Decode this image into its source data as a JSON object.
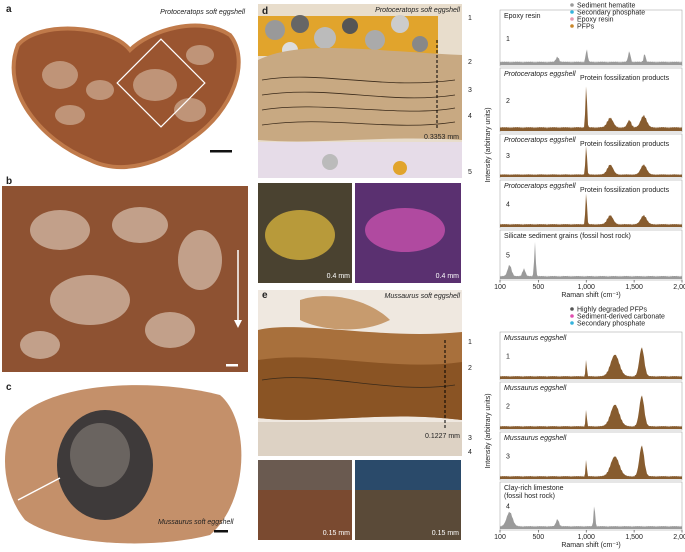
{
  "panel_a": {
    "label": "a",
    "caption": "Protoceratops soft eggshell"
  },
  "panel_b": {
    "label": "b"
  },
  "panel_c": {
    "label": "c",
    "caption": "Mussaurus soft eggshell"
  },
  "panel_d": {
    "label": "d",
    "title": "Protoceratops soft eggshell",
    "layers": [
      "1",
      "2",
      "3",
      "4",
      "5"
    ],
    "thickness": "0.3353 mm",
    "scale_bars": [
      "0.4 mm",
      "0.4 mm"
    ]
  },
  "panel_e": {
    "label": "e",
    "title": "Mussaurus soft eggshell",
    "layers": [
      "1",
      "2",
      "3",
      "4"
    ],
    "thickness": "0.1227 mm",
    "scale_bars": [
      "0.15 mm",
      "0.15 mm"
    ]
  },
  "spectra_top": {
    "legend": [
      {
        "name": "Sediment hematite",
        "color": "#9a9a9a"
      },
      {
        "name": "Secondary phosphate",
        "color": "#35b3dc"
      },
      {
        "name": "Epoxy resin",
        "color": "#e79ab0"
      },
      {
        "name": "PFPs",
        "color": "#c8862a"
      }
    ],
    "traces": [
      {
        "number": "1",
        "label": "Epoxy resin",
        "color": "#8f8f8f"
      },
      {
        "number": "2",
        "label": "Protoceratops eggshell",
        "note": "Protein fossilization products",
        "color": "#7a4a18"
      },
      {
        "number": "3",
        "label": "Protoceratops eggshell",
        "note": "Protein fossilization products",
        "color": "#7a4a18"
      },
      {
        "number": "4",
        "label": "Protoceratops eggshell",
        "note": "Protein fossilization products",
        "color": "#7a4a18"
      },
      {
        "number": "5",
        "label": "Silicate sediment grains (fossil host rock)",
        "color": "#8f8f8f"
      }
    ],
    "y_label": "Intensity (arbitrary units)",
    "x_label": "Raman shift (cm⁻¹)",
    "xlim": [
      100,
      2000
    ],
    "xticks": [
      100,
      500,
      {
        "value": 1000,
        "label": "1,000"
      },
      {
        "value": 1500,
        "label": "1,500"
      },
      {
        "value": 2000,
        "label": "2,000"
      }
    ]
  },
  "spectra_bottom": {
    "legend": [
      {
        "name": "Highly degraded PFPs",
        "color": "#555555"
      },
      {
        "name": "Sediment-derived carbonate",
        "color": "#e04fb0"
      },
      {
        "name": "Secondary phosphate",
        "color": "#35b3dc"
      }
    ],
    "traces": [
      {
        "number": "1",
        "label": "Mussaurus eggshell",
        "color": "#7a4a18"
      },
      {
        "number": "2",
        "label": "Mussaurus eggshell",
        "color": "#7a4a18"
      },
      {
        "number": "3",
        "label": "Mussaurus eggshell",
        "color": "#7a4a18"
      },
      {
        "number": "4",
        "label": "Clay-rich limestone",
        "note": "(fossil host rock)",
        "color": "#8f8f8f"
      }
    ],
    "y_label": "Intensity (arbitrary units)",
    "x_label": "Raman shift (cm⁻¹)",
    "xlim": [
      100,
      2000
    ],
    "xticks": [
      100,
      500,
      {
        "value": 1000,
        "label": "1,000"
      },
      {
        "value": 1500,
        "label": "1,500"
      },
      {
        "value": 2000,
        "label": "2,000"
      }
    ]
  }
}
